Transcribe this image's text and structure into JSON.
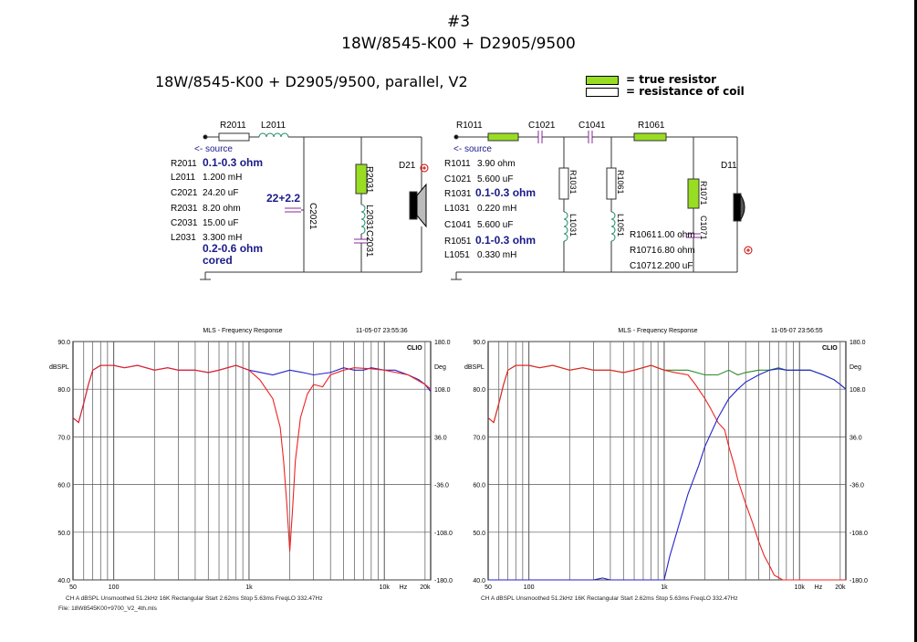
{
  "header": {
    "number": "#3",
    "title": "18W/8545-K00 + D2905/9500",
    "subtitle": "18W/8545-K00 + D2905/9500, parallel, V2"
  },
  "legend": {
    "true_resistor": "= true resistor",
    "coil_resistance": "= resistance of coil",
    "true_resistor_color": "#99dd22",
    "coil_resistance_color": "#ffffff"
  },
  "woofer_circuit": {
    "source": "<- source",
    "labels": {
      "r2011": "R2011",
      "l2011": "L2011",
      "c2021": "C2021",
      "r2031": "R2031",
      "l2031": "L2031",
      "c2031": "C2031",
      "driver": "D21"
    },
    "values": [
      {
        "name": "R2011",
        "value": "0.1-0.3 ohm",
        "note": true
      },
      {
        "name": "L2011",
        "value": "1.200 mH",
        "note": false
      },
      {
        "name": "C2021",
        "value": "24.20 uF",
        "note": false
      },
      {
        "name": "R2031",
        "value": "8.20 ohm",
        "note": false
      },
      {
        "name": "C2031",
        "value": "15.00 uF",
        "note": false
      },
      {
        "name": "L2031",
        "value": "3.300 mH",
        "note": false
      }
    ],
    "cap_note": "22+2.2",
    "coil_note_1": "0.2-0.6 ohm",
    "coil_note_2": "cored"
  },
  "tweeter_circuit": {
    "source": "<- source",
    "labels": {
      "r1011": "R1011",
      "c1021": "C1021",
      "c1041": "C1041",
      "r1061": "R1061",
      "r1031": "R1031",
      "l1031": "L1031",
      "r1051": "R1051",
      "l1051": "L1051",
      "r1071": "R1071",
      "c1071": "C1071",
      "driver": "D11"
    },
    "values": [
      {
        "name": "R1011",
        "value": "3.90 ohm",
        "note": false
      },
      {
        "name": "C1021",
        "value": "5.600 uF",
        "note": false
      },
      {
        "name": "R1031",
        "value": "0.1-0.3 ohm",
        "note": true
      },
      {
        "name": "L1031",
        "value": "0.220 mH",
        "note": false
      },
      {
        "name": "C1041",
        "value": "5.600 uF",
        "note": false
      },
      {
        "name": "R1051",
        "value": "0.1-0.3 ohm",
        "note": true
      },
      {
        "name": "L1051",
        "value": "0.330 mH",
        "note": false
      }
    ],
    "values_right": [
      {
        "name": "R1061",
        "value": "1.00 ohm"
      },
      {
        "name": "R1071",
        "value": "6.80 ohm"
      },
      {
        "name": "C1071",
        "value": "2.200 uF"
      }
    ]
  },
  "graphs": {
    "title": "MLS - Frequency Response",
    "brand": "CLIO",
    "left_ylabel": "dBSPL",
    "right_ylabel": "Deg",
    "left_ticks": [
      "90.0",
      "80.0",
      "70.0",
      "60.0",
      "50.0",
      "40.0"
    ],
    "right_ticks": [
      "180.0",
      "108.0",
      "36.0",
      "-36.0",
      "-108.0",
      "-180.0"
    ],
    "x_ticks": [
      "50",
      "100",
      "1k",
      "10k",
      "Hz",
      "20k"
    ],
    "footer": "CH A    dBSPL    Unsmoothed    51.2kHz    16K    Rectangular    Start 2.62ms    Stop 5.63ms    FreqLO 332.47Hz",
    "file": "File: 18W8545K00+9700_V2_4th.mls",
    "left_timestamp": "11-05-07 23:55:36",
    "right_timestamp": "11-05-07 23:56:55",
    "colors": {
      "blue": "#2222cc",
      "red": "#ee2222",
      "green": "#2a8a2a",
      "purple": "#7a2a9a"
    }
  },
  "chart_data": [
    {
      "type": "line",
      "title": "MLS - Frequency Response",
      "xlabel": "Hz",
      "ylabel": "dBSPL",
      "xscale": "log",
      "xlim": [
        50,
        22000
      ],
      "ylim": [
        40,
        90
      ],
      "grid": true,
      "series": [
        {
          "x": [
            50,
            55,
            60,
            65,
            70,
            80,
            90,
            100,
            120,
            150,
            200,
            250,
            300,
            400,
            500,
            600,
            800,
            1000,
            1500,
            2000,
            2500,
            3000,
            4000,
            5000,
            6000,
            7000,
            8000,
            10000,
            12000,
            15000,
            18000,
            20000,
            22000
          ],
          "y": [
            74,
            73,
            77,
            81,
            84,
            85,
            85,
            85,
            84.5,
            85,
            84,
            84.5,
            84,
            84,
            83.5,
            84,
            85,
            84,
            83,
            84,
            83.5,
            83,
            83.5,
            84.5,
            84,
            84,
            84.5,
            84,
            84,
            83,
            82,
            81,
            79.5
          ]
        },
        {
          "x": [
            50,
            55,
            60,
            65,
            70,
            80,
            90,
            100,
            120,
            150,
            200,
            250,
            300,
            400,
            500,
            600,
            800,
            1000,
            1200,
            1500,
            1700,
            1800,
            1900,
            2000,
            2100,
            2200,
            2400,
            2700,
            3000,
            3500,
            4000,
            5000,
            6000,
            8000,
            10000,
            15000,
            20000,
            22000
          ],
          "y": [
            74,
            73,
            77,
            81,
            84,
            85,
            85,
            85,
            84.5,
            85,
            84,
            84.5,
            84,
            84,
            83.5,
            84,
            85,
            84,
            82,
            78,
            72,
            65,
            56,
            46,
            55,
            65,
            74,
            79,
            81,
            80.5,
            83,
            84,
            84.5,
            84.3,
            84,
            83,
            81,
            80
          ]
        }
      ]
    },
    {
      "type": "line",
      "title": "MLS - Frequency Response",
      "xlabel": "Hz",
      "ylabel": "dBSPL",
      "xscale": "log",
      "xlim": [
        50,
        22000
      ],
      "ylim": [
        40,
        90
      ],
      "grid": true,
      "series": [
        {
          "x": [
            50,
            55,
            60,
            65,
            70,
            80,
            90,
            100,
            120,
            150,
            200,
            250,
            300,
            400,
            500,
            600,
            800,
            1000,
            1500,
            2000,
            2500,
            3000,
            3500,
            4000,
            5000,
            6000,
            7000,
            8000,
            10000,
            12000,
            15000,
            18000,
            20000,
            22000
          ],
          "y": [
            74,
            73,
            77,
            81,
            84,
            85,
            85,
            85,
            84.5,
            85,
            84,
            84.5,
            84,
            84,
            83.5,
            84,
            85,
            84,
            84,
            83,
            83,
            84,
            83,
            83.5,
            84,
            84,
            84.5,
            84,
            84,
            84,
            83,
            82,
            81,
            80
          ]
        },
        {
          "x": [
            50,
            55,
            60,
            65,
            70,
            80,
            90,
            100,
            120,
            150,
            200,
            250,
            300,
            400,
            500,
            600,
            800,
            1000,
            1200,
            1500,
            1700,
            2000,
            2200,
            2500,
            2800,
            3000,
            3300,
            3500,
            4000,
            4500,
            5000,
            5500,
            6000,
            6500,
            7000,
            7500,
            8000,
            22000
          ],
          "y": [
            74,
            73,
            77,
            81,
            84,
            85,
            85,
            85,
            84.5,
            85,
            84,
            84.5,
            84,
            84,
            83.5,
            84,
            85,
            84,
            83.5,
            83,
            81,
            78,
            76,
            73,
            71.5,
            68,
            64,
            61,
            56,
            52,
            48,
            45,
            43,
            41,
            40.5,
            40,
            40,
            40
          ]
        },
        {
          "x": [
            50,
            300,
            350,
            400,
            500,
            900,
            1000,
            1100,
            1300,
            1500,
            1800,
            2000,
            2500,
            3000,
            3500,
            4000,
            5000,
            6000,
            7000,
            8000,
            10000,
            12000,
            15000,
            18000,
            20000,
            22000
          ],
          "y": [
            40,
            40,
            40.4,
            40,
            40,
            40,
            40,
            45,
            52,
            58,
            64,
            68,
            74,
            78,
            80,
            81.5,
            83,
            84,
            84.3,
            84,
            84,
            84,
            83,
            82,
            81,
            80
          ]
        }
      ]
    }
  ]
}
